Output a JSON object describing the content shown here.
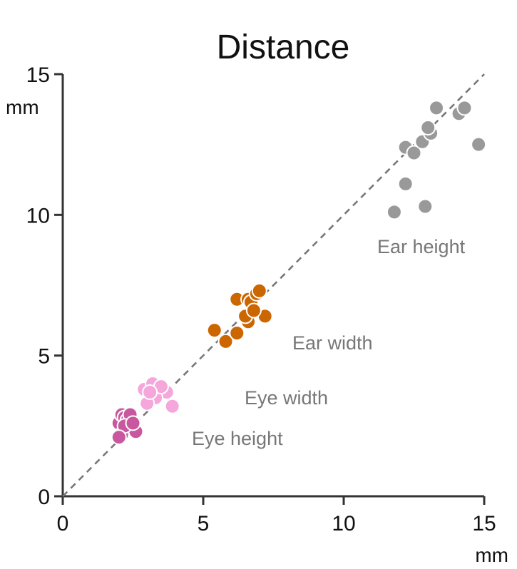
{
  "chart_data": {
    "type": "scatter",
    "title": "Distance",
    "x_unit": "mm",
    "y_unit": "mm",
    "xlim": [
      0,
      15
    ],
    "ylim": [
      0,
      15
    ],
    "x_ticks": [
      0,
      5,
      10,
      15
    ],
    "y_ticks": [
      0,
      5,
      10,
      15
    ],
    "grid": false,
    "reference_line": "identity (dashed)",
    "series": [
      {
        "name": "Eye height",
        "color": "#c9579f",
        "points": [
          [
            2.0,
            2.6
          ],
          [
            2.1,
            2.9
          ],
          [
            2.2,
            2.8
          ],
          [
            2.3,
            2.7
          ],
          [
            2.4,
            2.9
          ],
          [
            2.1,
            2.2
          ],
          [
            2.6,
            2.3
          ],
          [
            2.2,
            2.5
          ],
          [
            2.0,
            2.1
          ],
          [
            2.5,
            2.6
          ]
        ]
      },
      {
        "name": "Eye width",
        "color": "#f5a7dc",
        "points": [
          [
            2.9,
            3.8
          ],
          [
            3.2,
            4.0
          ],
          [
            3.4,
            3.6
          ],
          [
            3.6,
            3.8
          ],
          [
            3.7,
            3.7
          ],
          [
            3.3,
            3.5
          ],
          [
            3.9,
            3.2
          ],
          [
            3.0,
            3.3
          ],
          [
            3.5,
            3.9
          ],
          [
            3.1,
            3.7
          ]
        ]
      },
      {
        "name": "Ear width",
        "color": "#cc6600",
        "points": [
          [
            5.4,
            5.9
          ],
          [
            5.8,
            5.5
          ],
          [
            6.2,
            5.8
          ],
          [
            6.2,
            7.0
          ],
          [
            6.6,
            7.0
          ],
          [
            6.7,
            6.9
          ],
          [
            6.9,
            7.2
          ],
          [
            7.0,
            7.3
          ],
          [
            6.6,
            6.2
          ],
          [
            7.2,
            6.4
          ],
          [
            6.5,
            6.4
          ],
          [
            6.8,
            6.6
          ]
        ]
      },
      {
        "name": "Ear height",
        "color": "#999999",
        "points": [
          [
            11.8,
            10.1
          ],
          [
            12.2,
            11.1
          ],
          [
            12.2,
            12.4
          ],
          [
            12.5,
            12.2
          ],
          [
            12.8,
            12.6
          ],
          [
            13.1,
            12.9
          ],
          [
            13.0,
            13.1
          ],
          [
            13.3,
            13.8
          ],
          [
            14.1,
            13.6
          ],
          [
            14.3,
            13.8
          ],
          [
            12.9,
            10.3
          ],
          [
            14.8,
            12.5
          ]
        ]
      }
    ]
  }
}
